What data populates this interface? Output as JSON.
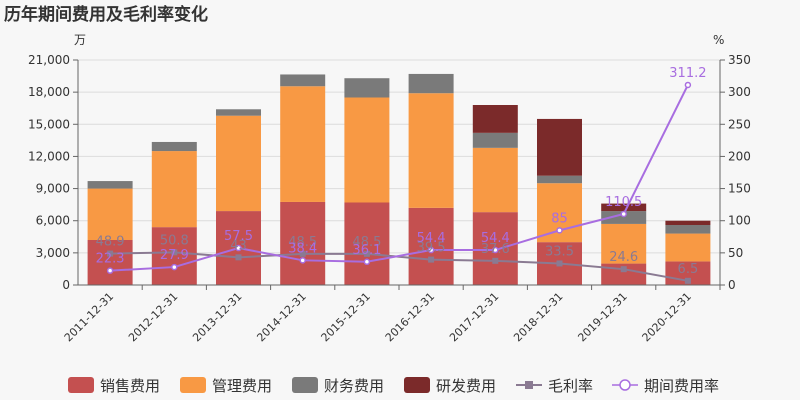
{
  "chart_data": {
    "type": "bar",
    "title": "历年期间费用及毛利率变化",
    "left_unit": "万",
    "right_unit": "%",
    "categories": [
      "2011-12-31",
      "2012-12-31",
      "2013-12-31",
      "2014-12-31",
      "2015-12-31",
      "2016-12-31",
      "2017-12-31",
      "2018-12-31",
      "2019-12-31",
      "2020-12-31"
    ],
    "y_left": {
      "min": 0,
      "max": 21000,
      "ticks": [
        0,
        3000,
        6000,
        9000,
        12000,
        15000,
        18000,
        21000
      ],
      "tick_labels": [
        "0",
        "3,000",
        "6,000",
        "9,000",
        "12,000",
        "15,000",
        "18,000",
        "21,000"
      ]
    },
    "y_right": {
      "min": 0,
      "max": 350,
      "ticks": [
        0,
        50,
        100,
        150,
        200,
        250,
        300,
        350
      ],
      "tick_labels": [
        "0",
        "50",
        "100",
        "150",
        "200",
        "250",
        "300",
        "350"
      ]
    },
    "grid": true,
    "stacked": true,
    "bar_series": [
      {
        "name": "销售费用",
        "color": "#c45050",
        "values": [
          4200,
          5400,
          6900,
          7750,
          7700,
          7200,
          6800,
          4000,
          2000,
          2200
        ]
      },
      {
        "name": "管理费用",
        "color": "#f89944",
        "values": [
          4800,
          7100,
          8900,
          10800,
          9800,
          10700,
          6000,
          5500,
          3700,
          2600
        ]
      },
      {
        "name": "财务费用",
        "color": "#7a7a7a",
        "values": [
          700,
          850,
          600,
          1100,
          1800,
          1800,
          1400,
          700,
          1200,
          800
        ]
      },
      {
        "name": "研发费用",
        "color": "#7b2a2a",
        "values": [
          0,
          0,
          0,
          0,
          0,
          0,
          2600,
          5300,
          700,
          400
        ]
      }
    ],
    "line_series": [
      {
        "name": "毛利率",
        "color": "#8a7a92",
        "values": [
          48.9,
          50.8,
          43,
          48.5,
          48.5,
          39.5,
          37.6,
          33.5,
          24.6,
          6.5
        ],
        "labels": [
          "48.9",
          "50.8",
          "43",
          "48.5",
          "48.5",
          "39.5",
          "37.6",
          "33.5",
          "24.6",
          "6.5"
        ]
      },
      {
        "name": "期间费用率",
        "color": "#a86de0",
        "values": [
          22.3,
          27.9,
          57.5,
          38.4,
          36.1,
          54.4,
          54.4,
          85,
          110.5,
          311.2
        ],
        "labels": [
          "22.3",
          "27.9",
          "57.5",
          "38.4",
          "36.1",
          "54.4",
          "54.4",
          "85",
          "110.5",
          "311.2"
        ]
      }
    ],
    "legend": {
      "position": "bottom",
      "items": [
        "销售费用",
        "管理费用",
        "财务费用",
        "研发费用",
        "毛利率",
        "期间费用率"
      ]
    }
  }
}
